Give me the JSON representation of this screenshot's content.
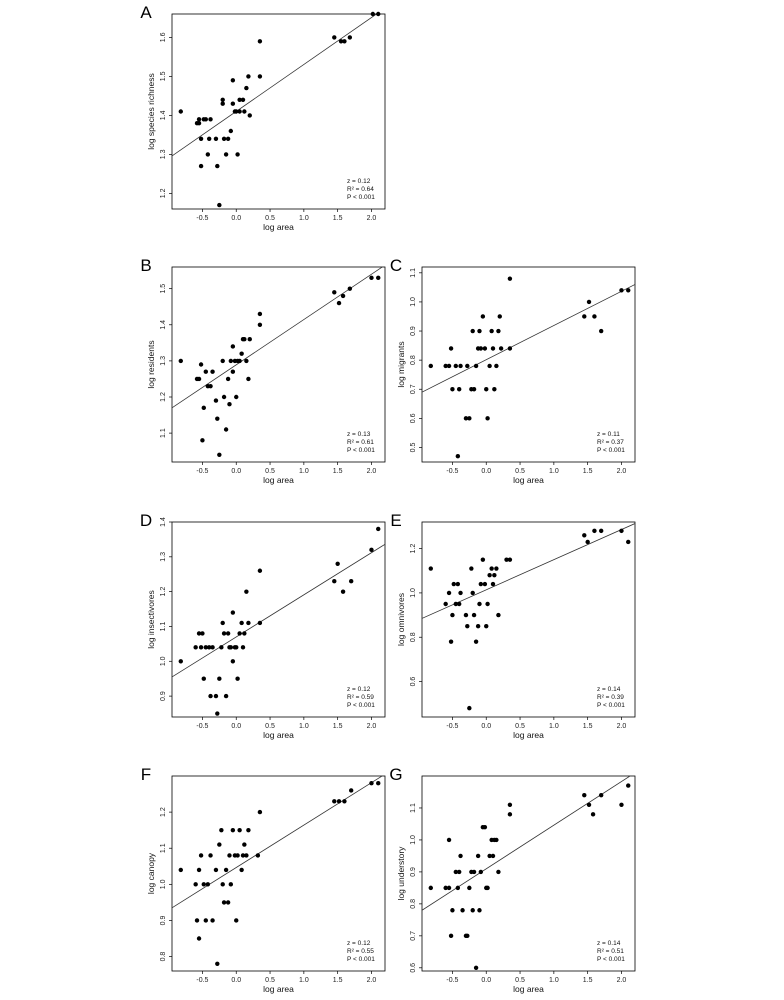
{
  "chart_data": [
    {
      "type": "scatter",
      "panel_label": "A",
      "xlabel": "log area",
      "ylabel": "log species richness",
      "xlim": [
        -0.95,
        2.2
      ],
      "ylim": [
        1.16,
        1.66
      ],
      "xticks": [
        "-0.5",
        "0.0",
        "0.5",
        "1.0",
        "1.5",
        "2.0"
      ],
      "yticks": [
        "1.2",
        "1.3",
        "1.4",
        "1.5",
        "1.6"
      ],
      "stats": [
        "z = 0.12",
        "R² = 0.64",
        "P < 0.001"
      ],
      "regression": {
        "x": [
          -0.95,
          2.2
        ],
        "y": [
          1.296,
          1.675
        ]
      },
      "points": [
        [
          -0.82,
          1.41
        ],
        [
          -0.58,
          1.38
        ],
        [
          -0.55,
          1.38
        ],
        [
          -0.55,
          1.39
        ],
        [
          -0.52,
          1.34
        ],
        [
          -0.52,
          1.27
        ],
        [
          -0.48,
          1.39
        ],
        [
          -0.45,
          1.39
        ],
        [
          -0.42,
          1.3
        ],
        [
          -0.4,
          1.34
        ],
        [
          -0.38,
          1.39
        ],
        [
          -0.3,
          1.34
        ],
        [
          -0.28,
          1.27
        ],
        [
          -0.25,
          1.17
        ],
        [
          -0.2,
          1.43
        ],
        [
          -0.2,
          1.44
        ],
        [
          -0.18,
          1.34
        ],
        [
          -0.15,
          1.3
        ],
        [
          -0.12,
          1.34
        ],
        [
          -0.08,
          1.36
        ],
        [
          -0.05,
          1.43
        ],
        [
          -0.05,
          1.49
        ],
        [
          -0.02,
          1.41
        ],
        [
          0.0,
          1.41
        ],
        [
          0.02,
          1.3
        ],
        [
          0.05,
          1.41
        ],
        [
          0.05,
          1.44
        ],
        [
          0.1,
          1.44
        ],
        [
          0.12,
          1.41
        ],
        [
          0.15,
          1.47
        ],
        [
          0.18,
          1.5
        ],
        [
          0.2,
          1.4
        ],
        [
          0.35,
          1.59
        ],
        [
          0.35,
          1.5
        ],
        [
          1.45,
          1.6
        ],
        [
          1.55,
          1.59
        ],
        [
          1.6,
          1.59
        ],
        [
          1.68,
          1.6
        ],
        [
          2.02,
          1.66
        ],
        [
          2.1,
          1.66
        ]
      ]
    },
    {
      "type": "scatter",
      "panel_label": "B",
      "xlabel": "log area",
      "ylabel": "log residents",
      "xlim": [
        -0.95,
        2.2
      ],
      "ylim": [
        1.02,
        1.56
      ],
      "xticks": [
        "-0.5",
        "0.0",
        "0.5",
        "1.0",
        "1.5",
        "2.0"
      ],
      "yticks": [
        "1.1",
        "1.2",
        "1.3",
        "1.4",
        "1.5"
      ],
      "stats": [
        "z = 0.13",
        "R² = 0.61",
        "P < 0.001"
      ],
      "regression": {
        "x": [
          -0.95,
          2.2
        ],
        "y": [
          1.17,
          1.565
        ]
      },
      "points": [
        [
          -0.82,
          1.3
        ],
        [
          -0.58,
          1.25
        ],
        [
          -0.55,
          1.25
        ],
        [
          -0.52,
          1.29
        ],
        [
          -0.5,
          1.08
        ],
        [
          -0.48,
          1.17
        ],
        [
          -0.45,
          1.27
        ],
        [
          -0.42,
          1.23
        ],
        [
          -0.38,
          1.23
        ],
        [
          -0.35,
          1.27
        ],
        [
          -0.3,
          1.19
        ],
        [
          -0.28,
          1.14
        ],
        [
          -0.25,
          1.04
        ],
        [
          -0.2,
          1.3
        ],
        [
          -0.18,
          1.2
        ],
        [
          -0.15,
          1.11
        ],
        [
          -0.12,
          1.25
        ],
        [
          -0.1,
          1.18
        ],
        [
          -0.08,
          1.3
        ],
        [
          -0.05,
          1.34
        ],
        [
          -0.05,
          1.27
        ],
        [
          -0.02,
          1.3
        ],
        [
          0.0,
          1.2
        ],
        [
          0.02,
          1.3
        ],
        [
          0.05,
          1.3
        ],
        [
          0.08,
          1.32
        ],
        [
          0.1,
          1.36
        ],
        [
          0.12,
          1.36
        ],
        [
          0.15,
          1.3
        ],
        [
          0.18,
          1.25
        ],
        [
          0.2,
          1.36
        ],
        [
          0.35,
          1.4
        ],
        [
          0.35,
          1.43
        ],
        [
          1.45,
          1.49
        ],
        [
          1.52,
          1.46
        ],
        [
          1.58,
          1.48
        ],
        [
          1.68,
          1.5
        ],
        [
          2.0,
          1.53
        ],
        [
          2.1,
          1.53
        ]
      ]
    },
    {
      "type": "scatter",
      "panel_label": "C",
      "xlabel": "log area",
      "ylabel": "log migrants",
      "xlim": [
        -0.95,
        2.2
      ],
      "ylim": [
        0.45,
        1.12
      ],
      "xticks": [
        "-0.5",
        "0.0",
        "0.5",
        "1.0",
        "1.5",
        "2.0"
      ],
      "yticks": [
        "0.5",
        "0.6",
        "0.7",
        "0.8",
        "0.9",
        "1.0",
        "1.1"
      ],
      "stats": [
        "z = 0.11",
        "R² = 0.37",
        "P < 0.001"
      ],
      "regression": {
        "x": [
          -0.95,
          2.2
        ],
        "y": [
          0.69,
          1.06
        ]
      },
      "points": [
        [
          -0.82,
          0.78
        ],
        [
          -0.6,
          0.78
        ],
        [
          -0.55,
          0.78
        ],
        [
          -0.52,
          0.84
        ],
        [
          -0.5,
          0.7
        ],
        [
          -0.45,
          0.78
        ],
        [
          -0.42,
          0.47
        ],
        [
          -0.4,
          0.7
        ],
        [
          -0.38,
          0.78
        ],
        [
          -0.3,
          0.6
        ],
        [
          -0.28,
          0.78
        ],
        [
          -0.25,
          0.6
        ],
        [
          -0.22,
          0.7
        ],
        [
          -0.2,
          0.9
        ],
        [
          -0.18,
          0.7
        ],
        [
          -0.15,
          0.78
        ],
        [
          -0.12,
          0.84
        ],
        [
          -0.1,
          0.9
        ],
        [
          -0.08,
          0.84
        ],
        [
          -0.05,
          0.95
        ],
        [
          -0.02,
          0.84
        ],
        [
          0.0,
          0.7
        ],
        [
          0.02,
          0.6
        ],
        [
          0.05,
          0.78
        ],
        [
          0.08,
          0.9
        ],
        [
          0.1,
          0.84
        ],
        [
          0.12,
          0.7
        ],
        [
          0.15,
          0.78
        ],
        [
          0.18,
          0.9
        ],
        [
          0.2,
          0.95
        ],
        [
          0.22,
          0.84
        ],
        [
          0.35,
          1.08
        ],
        [
          0.35,
          0.84
        ],
        [
          1.45,
          0.95
        ],
        [
          1.52,
          1.0
        ],
        [
          1.6,
          0.95
        ],
        [
          1.7,
          0.9
        ],
        [
          2.0,
          1.04
        ],
        [
          2.1,
          1.04
        ]
      ]
    },
    {
      "type": "scatter",
      "panel_label": "D",
      "xlabel": "log area",
      "ylabel": "log insectivores",
      "xlim": [
        -0.95,
        2.2
      ],
      "ylim": [
        0.84,
        1.4
      ],
      "xticks": [
        "-0.5",
        "0.0",
        "0.5",
        "1.0",
        "1.5",
        "2.0"
      ],
      "yticks": [
        "0.9",
        "1.0",
        "1.1",
        "1.2",
        "1.3",
        "1.4"
      ],
      "stats": [
        "z = 0.12",
        "R² = 0.59",
        "P < 0.001"
      ],
      "regression": {
        "x": [
          -0.95,
          2.2
        ],
        "y": [
          0.955,
          1.336
        ]
      },
      "points": [
        [
          -0.82,
          1.0
        ],
        [
          -0.6,
          1.04
        ],
        [
          -0.55,
          1.08
        ],
        [
          -0.52,
          1.04
        ],
        [
          -0.5,
          1.08
        ],
        [
          -0.48,
          0.95
        ],
        [
          -0.45,
          1.04
        ],
        [
          -0.4,
          1.04
        ],
        [
          -0.38,
          0.9
        ],
        [
          -0.35,
          1.04
        ],
        [
          -0.3,
          0.9
        ],
        [
          -0.28,
          0.85
        ],
        [
          -0.25,
          0.95
        ],
        [
          -0.22,
          1.04
        ],
        [
          -0.2,
          1.11
        ],
        [
          -0.18,
          1.08
        ],
        [
          -0.15,
          0.9
        ],
        [
          -0.12,
          1.08
        ],
        [
          -0.1,
          1.04
        ],
        [
          -0.08,
          1.04
        ],
        [
          -0.05,
          1.0
        ],
        [
          -0.05,
          1.14
        ],
        [
          -0.02,
          1.04
        ],
        [
          0.0,
          1.04
        ],
        [
          0.02,
          0.95
        ],
        [
          0.05,
          1.08
        ],
        [
          0.08,
          1.11
        ],
        [
          0.1,
          1.04
        ],
        [
          0.12,
          1.08
        ],
        [
          0.15,
          1.2
        ],
        [
          0.18,
          1.11
        ],
        [
          0.35,
          1.26
        ],
        [
          0.35,
          1.11
        ],
        [
          1.45,
          1.23
        ],
        [
          1.5,
          1.28
        ],
        [
          1.58,
          1.2
        ],
        [
          1.7,
          1.23
        ],
        [
          2.0,
          1.32
        ],
        [
          2.1,
          1.38
        ]
      ]
    },
    {
      "type": "scatter",
      "panel_label": "E",
      "xlabel": "log area",
      "ylabel": "log omnivores",
      "xlim": [
        -0.95,
        2.2
      ],
      "ylim": [
        0.44,
        1.32
      ],
      "xticks": [
        "-0.5",
        "0.0",
        "0.5",
        "1.0",
        "1.5",
        "2.0"
      ],
      "yticks": [
        "0.6",
        "0.8",
        "1.0",
        "1.2"
      ],
      "stats": [
        "z = 0.14",
        "R² = 0.39",
        "P < 0.001"
      ],
      "regression": {
        "x": [
          -0.95,
          2.2
        ],
        "y": [
          0.885,
          1.313
        ]
      },
      "points": [
        [
          -0.82,
          1.11
        ],
        [
          -0.6,
          0.95
        ],
        [
          -0.55,
          1.0
        ],
        [
          -0.52,
          0.78
        ],
        [
          -0.5,
          0.9
        ],
        [
          -0.48,
          1.04
        ],
        [
          -0.45,
          0.95
        ],
        [
          -0.42,
          1.04
        ],
        [
          -0.4,
          0.95
        ],
        [
          -0.38,
          1.0
        ],
        [
          -0.3,
          0.9
        ],
        [
          -0.28,
          0.85
        ],
        [
          -0.25,
          0.48
        ],
        [
          -0.22,
          1.11
        ],
        [
          -0.2,
          1.0
        ],
        [
          -0.18,
          0.9
        ],
        [
          -0.15,
          0.78
        ],
        [
          -0.12,
          0.85
        ],
        [
          -0.1,
          0.95
        ],
        [
          -0.08,
          1.04
        ],
        [
          -0.05,
          1.15
        ],
        [
          -0.02,
          1.04
        ],
        [
          0.0,
          0.85
        ],
        [
          0.02,
          0.95
        ],
        [
          0.05,
          1.08
        ],
        [
          0.08,
          1.11
        ],
        [
          0.1,
          1.04
        ],
        [
          0.12,
          1.08
        ],
        [
          0.15,
          1.11
        ],
        [
          0.18,
          0.9
        ],
        [
          0.35,
          1.15
        ],
        [
          0.3,
          1.15
        ],
        [
          1.45,
          1.26
        ],
        [
          1.5,
          1.23
        ],
        [
          1.6,
          1.28
        ],
        [
          1.7,
          1.28
        ],
        [
          2.0,
          1.28
        ],
        [
          2.1,
          1.23
        ]
      ]
    },
    {
      "type": "scatter",
      "panel_label": "F",
      "xlabel": "log area",
      "ylabel": "log canopy",
      "xlim": [
        -0.95,
        2.2
      ],
      "ylim": [
        0.76,
        1.3
      ],
      "xticks": [
        "-0.5",
        "0.0",
        "0.5",
        "1.0",
        "1.5",
        "2.0"
      ],
      "yticks": [
        "0.8",
        "0.9",
        "1.0",
        "1.1",
        "1.2"
      ],
      "stats": [
        "z = 0.12",
        "R² = 0.55",
        "P < 0.001"
      ],
      "regression": {
        "x": [
          -0.95,
          2.2
        ],
        "y": [
          0.935,
          1.305
        ]
      },
      "points": [
        [
          -0.82,
          1.04
        ],
        [
          -0.6,
          1.0
        ],
        [
          -0.58,
          0.9
        ],
        [
          -0.55,
          0.85
        ],
        [
          -0.55,
          1.04
        ],
        [
          -0.52,
          1.08
        ],
        [
          -0.48,
          1.0
        ],
        [
          -0.45,
          0.9
        ],
        [
          -0.42,
          1.0
        ],
        [
          -0.38,
          1.08
        ],
        [
          -0.35,
          0.9
        ],
        [
          -0.3,
          1.04
        ],
        [
          -0.28,
          0.78
        ],
        [
          -0.25,
          1.11
        ],
        [
          -0.22,
          1.15
        ],
        [
          -0.2,
          1.0
        ],
        [
          -0.18,
          0.95
        ],
        [
          -0.15,
          1.04
        ],
        [
          -0.12,
          0.95
        ],
        [
          -0.1,
          1.08
        ],
        [
          -0.08,
          1.0
        ],
        [
          -0.05,
          1.15
        ],
        [
          -0.02,
          1.08
        ],
        [
          0.0,
          0.9
        ],
        [
          0.02,
          1.08
        ],
        [
          0.05,
          1.15
        ],
        [
          0.08,
          1.04
        ],
        [
          0.1,
          1.08
        ],
        [
          0.12,
          1.11
        ],
        [
          0.15,
          1.08
        ],
        [
          0.18,
          1.15
        ],
        [
          0.35,
          1.2
        ],
        [
          0.32,
          1.08
        ],
        [
          1.45,
          1.23
        ],
        [
          1.52,
          1.23
        ],
        [
          1.6,
          1.23
        ],
        [
          1.7,
          1.26
        ],
        [
          2.0,
          1.28
        ],
        [
          2.1,
          1.28
        ]
      ]
    },
    {
      "type": "scatter",
      "panel_label": "G",
      "xlabel": "log area",
      "ylabel": "log understory",
      "xlim": [
        -0.95,
        2.2
      ],
      "ylim": [
        0.59,
        1.2
      ],
      "xticks": [
        "-0.5",
        "0.0",
        "0.5",
        "1.0",
        "1.5",
        "2.0"
      ],
      "yticks": [
        "0.6",
        "0.7",
        "0.8",
        "0.9",
        "1.0",
        "1.1"
      ],
      "stats": [
        "z = 0.14",
        "R² = 0.51",
        "P < 0.001"
      ],
      "regression": {
        "x": [
          -0.95,
          2.2
        ],
        "y": [
          0.78,
          1.21
        ]
      },
      "points": [
        [
          -0.82,
          0.85
        ],
        [
          -0.6,
          0.85
        ],
        [
          -0.55,
          0.85
        ],
        [
          -0.55,
          1.0
        ],
        [
          -0.52,
          0.7
        ],
        [
          -0.5,
          0.78
        ],
        [
          -0.45,
          0.9
        ],
        [
          -0.42,
          0.85
        ],
        [
          -0.4,
          0.9
        ],
        [
          -0.38,
          0.95
        ],
        [
          -0.35,
          0.78
        ],
        [
          -0.3,
          0.7
        ],
        [
          -0.28,
          0.7
        ],
        [
          -0.25,
          0.85
        ],
        [
          -0.22,
          0.9
        ],
        [
          -0.2,
          0.78
        ],
        [
          -0.18,
          0.9
        ],
        [
          -0.15,
          0.6
        ],
        [
          -0.12,
          0.95
        ],
        [
          -0.1,
          0.78
        ],
        [
          -0.08,
          0.9
        ],
        [
          -0.05,
          1.04
        ],
        [
          -0.02,
          1.04
        ],
        [
          0.0,
          0.85
        ],
        [
          0.02,
          0.85
        ],
        [
          0.05,
          0.95
        ],
        [
          0.08,
          1.0
        ],
        [
          0.1,
          0.95
        ],
        [
          0.12,
          1.0
        ],
        [
          0.15,
          1.0
        ],
        [
          0.18,
          0.9
        ],
        [
          0.35,
          1.08
        ],
        [
          0.35,
          1.11
        ],
        [
          1.45,
          1.14
        ],
        [
          1.52,
          1.11
        ],
        [
          1.58,
          1.08
        ],
        [
          1.7,
          1.14
        ],
        [
          2.0,
          1.11
        ],
        [
          2.1,
          1.17
        ]
      ]
    }
  ]
}
